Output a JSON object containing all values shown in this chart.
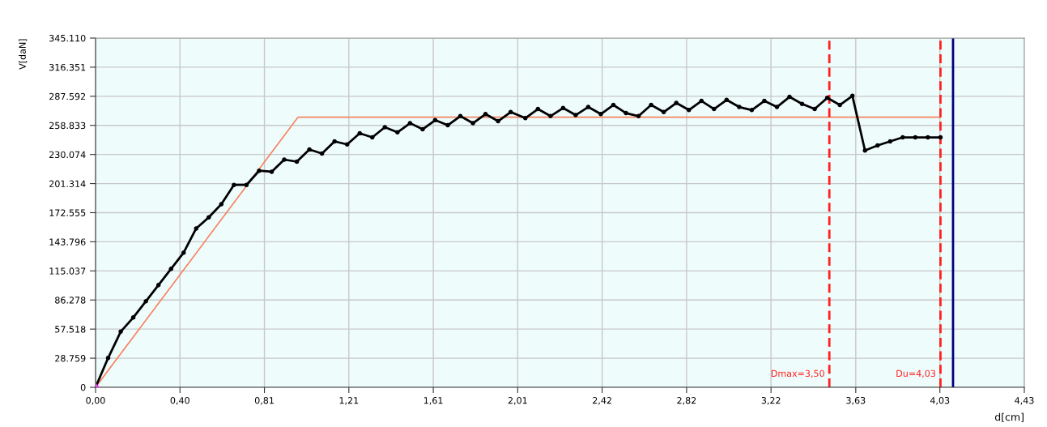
{
  "chart_data": {
    "type": "line",
    "xlabel": "d[cm]",
    "ylabel": "V[daN]",
    "xlim": [
      0,
      4.43
    ],
    "ylim": [
      0,
      345110
    ],
    "xticks": [
      {
        "value": 0,
        "label": "0,00"
      },
      {
        "value": 0.4027,
        "label": "0,40"
      },
      {
        "value": 0.8055,
        "label": "0,81"
      },
      {
        "value": 1.2082,
        "label": "1,21"
      },
      {
        "value": 1.6109,
        "label": "1,61"
      },
      {
        "value": 2.0136,
        "label": "2,01"
      },
      {
        "value": 2.4164,
        "label": "2,42"
      },
      {
        "value": 2.8191,
        "label": "2,82"
      },
      {
        "value": 3.2218,
        "label": "3,22"
      },
      {
        "value": 3.626,
        "label": "3,63"
      },
      {
        "value": 4.0273,
        "label": "4,03"
      },
      {
        "value": 4.43,
        "label": "4,43"
      }
    ],
    "yticks": [
      0,
      {
        "value": 28759,
        "label": "28.759"
      },
      {
        "value": 57518,
        "label": "57.518"
      },
      {
        "value": 86278,
        "label": "86.278"
      },
      {
        "value": 115037,
        "label": "115.037"
      },
      {
        "value": 143796,
        "label": "143.796"
      },
      {
        "value": 172555,
        "label": "172.555"
      },
      {
        "value": 201314,
        "label": "201.314"
      },
      {
        "value": 230074,
        "label": "230.074"
      },
      {
        "value": 258833,
        "label": "258.833"
      },
      {
        "value": 287592,
        "label": "287.592"
      },
      {
        "value": 316351,
        "label": "316.351"
      },
      {
        "value": 345110,
        "label": "345.110"
      }
    ],
    "grid": true,
    "legend": false,
    "series": [
      {
        "color": "#f4845f",
        "marker": "none",
        "x": [
          0,
          0.966,
          4.03
        ],
        "values": [
          0,
          267000,
          267000
        ]
      },
      {
        "color": "#000000",
        "marker": "circle",
        "x": [
          0,
          0.06,
          0.12,
          0.18,
          0.24,
          0.3,
          0.36,
          0.42,
          0.48,
          0.54,
          0.6,
          0.66,
          0.72,
          0.78,
          0.84,
          0.9,
          0.96,
          1.02,
          1.08,
          1.14,
          1.2,
          1.26,
          1.32,
          1.38,
          1.44,
          1.5,
          1.56,
          1.62,
          1.68,
          1.74,
          1.8,
          1.86,
          1.92,
          1.98,
          2.05,
          2.11,
          2.17,
          2.23,
          2.29,
          2.35,
          2.41,
          2.47,
          2.53,
          2.59,
          2.65,
          2.71,
          2.77,
          2.83,
          2.89,
          2.95,
          3.01,
          3.07,
          3.13,
          3.19,
          3.25,
          3.31,
          3.37,
          3.43,
          3.49,
          3.55,
          3.61,
          3.67,
          3.73,
          3.79,
          3.85,
          3.91,
          3.97,
          4.03
        ],
        "values": [
          0,
          29000,
          55000,
          69000,
          85000,
          101000,
          117000,
          133000,
          157000,
          168000,
          181000,
          200000,
          200000,
          214000,
          213000,
          225000,
          223000,
          235000,
          231000,
          243000,
          240000,
          251000,
          247000,
          257000,
          252000,
          261000,
          255000,
          264000,
          259000,
          268000,
          261000,
          270000,
          263000,
          272000,
          266000,
          275000,
          268000,
          276000,
          269000,
          277000,
          270000,
          279000,
          271000,
          268000,
          279000,
          272000,
          281000,
          274000,
          283000,
          275000,
          284000,
          277000,
          274000,
          283000,
          277000,
          287000,
          280000,
          275000,
          286000,
          279000,
          288000,
          234000,
          239000,
          243000,
          247000,
          247000,
          247000,
          247000
        ]
      },
      {
        "type": "scatter",
        "color": "#e040e0",
        "marker": "diamond",
        "x": [
          0
        ],
        "values": [
          0
        ]
      }
    ],
    "ref_lines": [
      {
        "axis": "x",
        "value": 3.5,
        "label": "Dmax=3,50",
        "color": "#ff2020",
        "line_style": "dashed"
      },
      {
        "axis": "x",
        "value": 4.03,
        "label": "Du=4,03",
        "color": "#ff2020",
        "line_style": "dashed"
      },
      {
        "axis": "x",
        "value": 4.09,
        "color": "#000080",
        "line_style": "solid"
      }
    ]
  }
}
